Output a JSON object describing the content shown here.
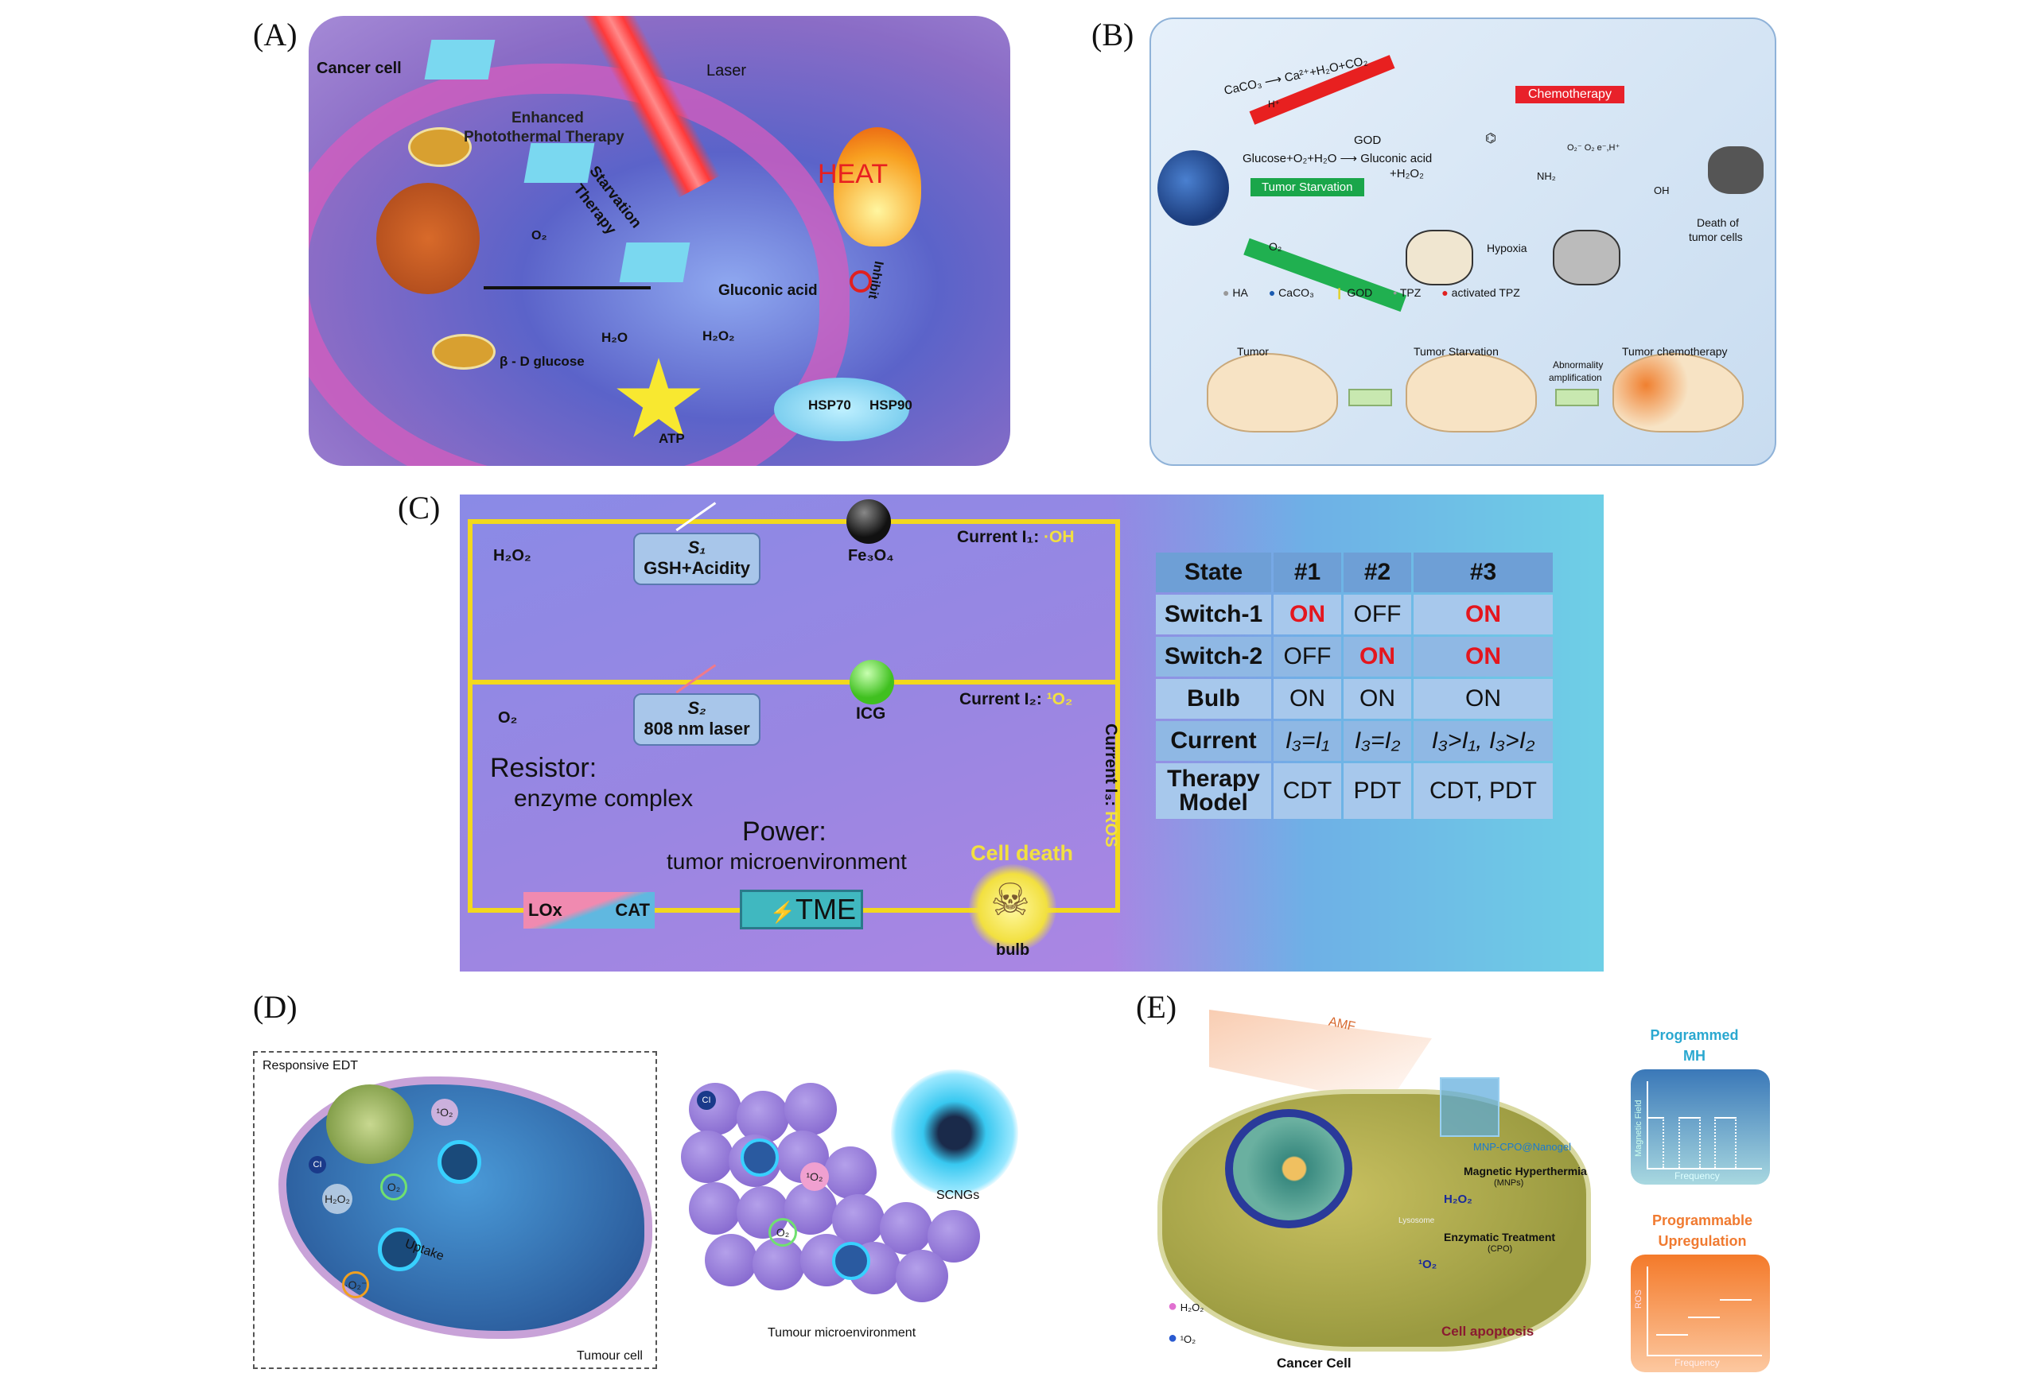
{
  "panel_labels": {
    "a": "(A)",
    "b": "(B)",
    "c": "(C)",
    "d": "(D)",
    "e": "(E)"
  },
  "panel_a": {
    "cancer_cell": "Cancer cell",
    "laser": "Laser",
    "enhanced": "Enhanced",
    "ptt": "Photothermal Therapy",
    "starvation": "Starvation",
    "therapy": "Therapy",
    "heat": "HEAT",
    "o2": "O₂",
    "gluconic_acid": "Gluconic acid",
    "inhibit": "Inhibit",
    "h2o": "H₂O",
    "h2o2": "H₂O₂",
    "glucose": "β - D glucose",
    "atp": "ATP",
    "hsp70": "HSP70",
    "hsp90": "HSP90"
  },
  "panel_b": {
    "caco3_reaction": "CaCO₃ ⟶ Ca²⁺+H₂O+CO₂",
    "h_plus": "H⁺",
    "chemotherapy": "Chemotherapy",
    "god": "GOD",
    "glucose_reaction": "Glucose+O₂+H₂O ⟶ Gluconic acid",
    "h2o2": "+H₂O₂",
    "tumor_starvation_badge": "Tumor Starvation",
    "o2": "O₂",
    "hypoxia": "Hypoxia",
    "redox": "O₂⁻ O₂  e⁻,H⁺",
    "nh2": "NH₂",
    "oh": "OH",
    "death": "Death of",
    "tumor_cells": "tumor cells",
    "legend": [
      "HA",
      "CaCO₃",
      "GOD",
      "TPZ",
      "activated TPZ"
    ],
    "tumor": "Tumor",
    "tumor_starvation": "Tumor Starvation",
    "abnormality": "Abnormality",
    "amplification": "amplification",
    "tumor_chemo": "Tumor chemotherapy"
  },
  "panel_c": {
    "h2o2": "H₂O₂",
    "s1": "S₁",
    "s1_desc": "GSH+Acidity",
    "fe3o4": "Fe₃O₄",
    "current1": "Current I₁:",
    "current1_val": "·OH",
    "o2": "O₂",
    "s2": "S₂",
    "s2_desc": "808 nm laser",
    "icg": "ICG",
    "current2": "Current I₂:",
    "current2_val": "¹O₂",
    "current3": "Current I₃:",
    "current3_val": "ROS",
    "resistor": "Resistor:",
    "enzyme": "enzyme complex",
    "power": "Power:",
    "tme_desc": "tumor microenvironment",
    "cell_death": "Cell death",
    "lox": "LOx",
    "cat": "CAT",
    "tme": "TME",
    "bulb": "bulb",
    "table": {
      "header": [
        "State",
        "#1",
        "#2",
        "#3"
      ],
      "rows": [
        [
          "Switch-1",
          "ON",
          "OFF",
          "ON"
        ],
        [
          "Switch-2",
          "OFF",
          "ON",
          "ON"
        ],
        [
          "Bulb",
          "ON",
          "ON",
          "ON"
        ],
        [
          "Current",
          "I₃=I₁",
          "I₃=I₂",
          "I₃>I₁, I₃>I₂"
        ],
        [
          "Therapy Model",
          "CDT",
          "PDT",
          "CDT, PDT"
        ]
      ]
    }
  },
  "panel_d": {
    "responsive_edt": "Responsive EDT",
    "tumour_cell": "Tumour cell",
    "uptake": "Uptake",
    "ci": "CI",
    "h2o2": "H₂O₂",
    "o2": "O₂",
    "singlet": "¹O₂",
    "superoxide": "·O₂⁻",
    "scngs": "SCNGs",
    "tme": "Tumour microenvironment"
  },
  "panel_e": {
    "amf": "AMF",
    "nanogel": "MNP-CPO@Nanogel",
    "mh": "Magnetic Hyperthermia",
    "mnps": "(MNPs)",
    "h2o2": "H₂O₂",
    "lysosome": "Lysosome",
    "enzymatic": "Enzymatic Treatment",
    "cpo": "(CPO)",
    "singlet": "¹O₂",
    "apoptosis": "Cell apoptosis",
    "cancer_cell": "Cancer Cell",
    "legend_h2o2": "H₂O₂",
    "legend_o2": "¹O₂",
    "programmed": "Programmed",
    "mh_short": "MH",
    "magnetic_field": "Magnetic Field",
    "frequency": "Frequency",
    "programmable": "Programmable",
    "upregulation": "Upregulation",
    "ros": "ROS"
  },
  "colors": {
    "on_red": "#e4161e",
    "wire_yellow": "#f2d81e",
    "chemo_red": "#e8212a",
    "starvation_green": "#1aa64a"
  }
}
